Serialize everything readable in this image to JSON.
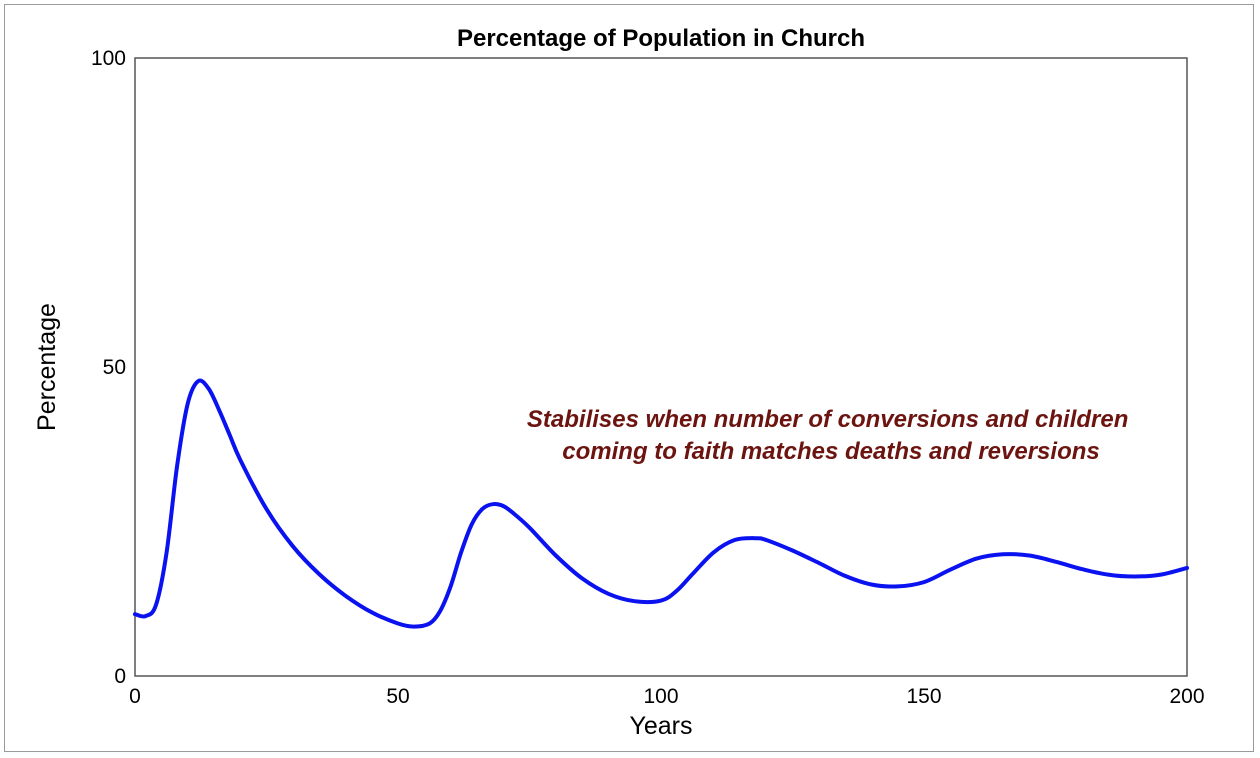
{
  "chart_data": {
    "type": "line",
    "title": "Percentage of Population in Church",
    "xlabel": "Years",
    "ylabel": "Percentage",
    "xlim": [
      0,
      200
    ],
    "ylim": [
      0,
      100
    ],
    "x_ticks": [
      "0",
      "50",
      "100",
      "150",
      "200"
    ],
    "y_ticks": [
      "0",
      "50",
      "100"
    ],
    "grid": false,
    "series": [
      {
        "color": "#0a12f0",
        "x": [
          0,
          2,
          4,
          6,
          8,
          10,
          12,
          14,
          16,
          18,
          20,
          25,
          30,
          35,
          40,
          45,
          50,
          53,
          56,
          58,
          60,
          62,
          64,
          66,
          68,
          70,
          72,
          75,
          80,
          85,
          90,
          95,
          100,
          103,
          106,
          110,
          114,
          118,
          120,
          125,
          130,
          135,
          140,
          145,
          150,
          155,
          160,
          165,
          170,
          175,
          180,
          185,
          190,
          195,
          200
        ],
        "y": [
          10,
          9.7,
          11.5,
          20,
          34,
          44,
          47.7,
          46.5,
          43,
          39,
          35,
          27,
          21,
          16.5,
          13,
          10.3,
          8.5,
          8,
          8.5,
          10.5,
          14.5,
          20,
          24.5,
          27,
          27.8,
          27.5,
          26.3,
          24,
          19.5,
          15.8,
          13.3,
          12.1,
          12.2,
          13.8,
          16.5,
          20,
          22,
          22.3,
          22,
          20.3,
          18.3,
          16.2,
          14.8,
          14.5,
          15.2,
          17.2,
          19,
          19.7,
          19.5,
          18.5,
          17.3,
          16.4,
          16.1,
          16.4,
          17.5
        ]
      }
    ],
    "annotation": {
      "lines": [
        "Stabilises when number of conversions and children",
        "coming to faith matches deaths and reversions"
      ],
      "color": "#6b1410"
    }
  }
}
